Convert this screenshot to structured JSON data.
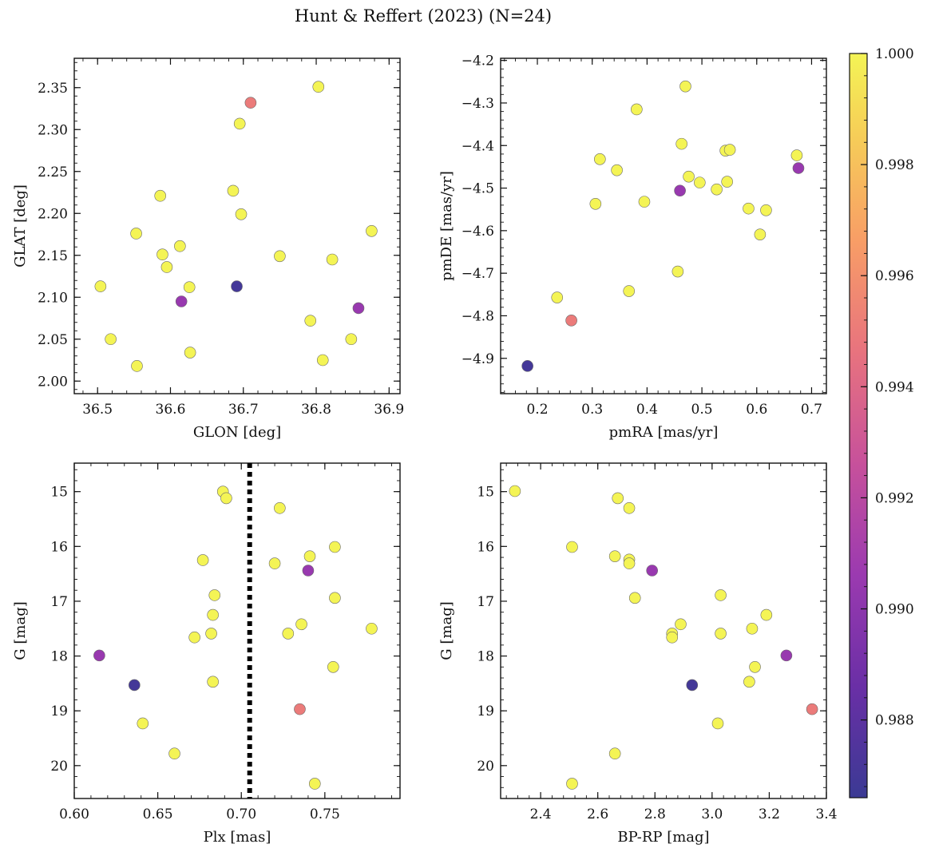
{
  "figure_title": "Hunt & Reffert (2023) (N=24)",
  "colorbar": {
    "min": 0.9866,
    "max": 1.0,
    "ticks": [
      0.988,
      0.99,
      0.992,
      0.994,
      0.996,
      0.998,
      1.0
    ],
    "tick_labels": [
      "0.988",
      "0.990",
      "0.992",
      "0.994",
      "0.996",
      "0.998",
      "1.000"
    ],
    "colormap": "plasma"
  },
  "chart_data": [
    {
      "type": "scatter",
      "title": "",
      "xlabel": "GLON [deg]",
      "ylabel": "GLAT [deg]",
      "xlim": [
        36.468,
        36.915
      ],
      "ylim": [
        1.985,
        2.385
      ],
      "yinvert": false,
      "xticks": [
        36.5,
        36.6,
        36.7,
        36.8,
        36.9
      ],
      "xtick_labels": [
        "36.5",
        "36.6",
        "36.7",
        "36.8",
        "36.9"
      ],
      "yticks": [
        2.0,
        2.05,
        2.1,
        2.15,
        2.2,
        2.25,
        2.3,
        2.35
      ],
      "ytick_labels": [
        "2.00",
        "2.05",
        "2.10",
        "2.15",
        "2.20",
        "2.25",
        "2.30",
        "2.35"
      ],
      "points": [
        {
          "x": 36.504,
          "y": 2.113,
          "c": 1.0
        },
        {
          "x": 36.518,
          "y": 2.05,
          "c": 1.0
        },
        {
          "x": 36.553,
          "y": 2.176,
          "c": 1.0
        },
        {
          "x": 36.554,
          "y": 2.018,
          "c": 1.0
        },
        {
          "x": 36.586,
          "y": 2.221,
          "c": 1.0
        },
        {
          "x": 36.589,
          "y": 2.151,
          "c": 1.0
        },
        {
          "x": 36.595,
          "y": 2.136,
          "c": 1.0
        },
        {
          "x": 36.613,
          "y": 2.161,
          "c": 1.0
        },
        {
          "x": 36.615,
          "y": 2.095,
          "c": 0.9905
        },
        {
          "x": 36.626,
          "y": 2.112,
          "c": 1.0
        },
        {
          "x": 36.627,
          "y": 2.034,
          "c": 1.0
        },
        {
          "x": 36.686,
          "y": 2.227,
          "c": 1.0
        },
        {
          "x": 36.691,
          "y": 2.113,
          "c": 0.987
        },
        {
          "x": 36.695,
          "y": 2.307,
          "c": 1.0
        },
        {
          "x": 36.697,
          "y": 2.199,
          "c": 1.0
        },
        {
          "x": 36.71,
          "y": 2.332,
          "c": 0.995
        },
        {
          "x": 36.75,
          "y": 2.149,
          "c": 1.0
        },
        {
          "x": 36.792,
          "y": 2.072,
          "c": 1.0
        },
        {
          "x": 36.803,
          "y": 2.351,
          "c": 1.0
        },
        {
          "x": 36.809,
          "y": 2.025,
          "c": 1.0
        },
        {
          "x": 36.822,
          "y": 2.145,
          "c": 1.0
        },
        {
          "x": 36.848,
          "y": 2.05,
          "c": 1.0
        },
        {
          "x": 36.858,
          "y": 2.087,
          "c": 0.9905
        },
        {
          "x": 36.876,
          "y": 2.179,
          "c": 1.0
        }
      ]
    },
    {
      "type": "scatter",
      "title": "",
      "xlabel": "pmRA [mas/yr]",
      "ylabel": "pmDE [mas/yr]",
      "xlim": [
        0.133,
        0.727
      ],
      "ylim": [
        -4.983,
        -4.195
      ],
      "yinvert": false,
      "xticks": [
        0.2,
        0.3,
        0.4,
        0.5,
        0.6,
        0.7
      ],
      "xtick_labels": [
        "0.2",
        "0.3",
        "0.4",
        "0.5",
        "0.6",
        "0.7"
      ],
      "yticks": [
        -4.9,
        -4.8,
        -4.7,
        -4.6,
        -4.5,
        -4.4,
        -4.3,
        -4.2
      ],
      "ytick_labels": [
        "−4.9",
        "−4.8",
        "−4.7",
        "−4.6",
        "−4.5",
        "−4.4",
        "−4.3",
        "−4.2"
      ],
      "points": [
        {
          "x": 0.182,
          "y": -4.918,
          "c": 0.987
        },
        {
          "x": 0.236,
          "y": -4.757,
          "c": 1.0
        },
        {
          "x": 0.262,
          "y": -4.811,
          "c": 0.995
        },
        {
          "x": 0.306,
          "y": -4.537,
          "c": 1.0
        },
        {
          "x": 0.314,
          "y": -4.432,
          "c": 1.0
        },
        {
          "x": 0.345,
          "y": -4.458,
          "c": 1.0
        },
        {
          "x": 0.367,
          "y": -4.742,
          "c": 1.0
        },
        {
          "x": 0.381,
          "y": -4.315,
          "c": 1.0
        },
        {
          "x": 0.395,
          "y": -4.532,
          "c": 1.0
        },
        {
          "x": 0.456,
          "y": -4.696,
          "c": 1.0
        },
        {
          "x": 0.46,
          "y": -4.506,
          "c": 0.9905
        },
        {
          "x": 0.463,
          "y": -4.396,
          "c": 1.0
        },
        {
          "x": 0.47,
          "y": -4.261,
          "c": 1.0
        },
        {
          "x": 0.476,
          "y": -4.473,
          "c": 1.0
        },
        {
          "x": 0.496,
          "y": -4.487,
          "c": 1.0
        },
        {
          "x": 0.527,
          "y": -4.503,
          "c": 1.0
        },
        {
          "x": 0.543,
          "y": -4.412,
          "c": 1.0
        },
        {
          "x": 0.546,
          "y": -4.485,
          "c": 1.0
        },
        {
          "x": 0.551,
          "y": -4.41,
          "c": 1.0
        },
        {
          "x": 0.585,
          "y": -4.548,
          "c": 1.0
        },
        {
          "x": 0.606,
          "y": -4.609,
          "c": 1.0
        },
        {
          "x": 0.617,
          "y": -4.552,
          "c": 1.0
        },
        {
          "x": 0.673,
          "y": -4.423,
          "c": 1.0
        },
        {
          "x": 0.676,
          "y": -4.453,
          "c": 0.9905
        }
      ]
    },
    {
      "type": "scatter",
      "title": "",
      "xlabel": "Plx [mas]",
      "ylabel": "G [mag]",
      "xlim": [
        0.6,
        0.795
      ],
      "ylim": [
        20.6,
        14.48
      ],
      "yinvert": true,
      "vline": {
        "x": 0.705,
        "style": "dotted"
      },
      "xticks": [
        0.6,
        0.65,
        0.7,
        0.75
      ],
      "xtick_labels": [
        "0.60",
        "0.65",
        "0.70",
        "0.75"
      ],
      "yticks": [
        15,
        16,
        17,
        18,
        19,
        20
      ],
      "ytick_labels": [
        "15",
        "16",
        "17",
        "18",
        "19",
        "20"
      ],
      "points": [
        {
          "x": 0.615,
          "y": 17.99,
          "c": 0.9905
        },
        {
          "x": 0.636,
          "y": 18.53,
          "c": 0.987
        },
        {
          "x": 0.641,
          "y": 19.23,
          "c": 1.0
        },
        {
          "x": 0.66,
          "y": 19.78,
          "c": 1.0
        },
        {
          "x": 0.672,
          "y": 17.66,
          "c": 1.0
        },
        {
          "x": 0.677,
          "y": 16.25,
          "c": 1.0
        },
        {
          "x": 0.682,
          "y": 17.59,
          "c": 1.0
        },
        {
          "x": 0.683,
          "y": 17.25,
          "c": 1.0
        },
        {
          "x": 0.683,
          "y": 18.47,
          "c": 1.0
        },
        {
          "x": 0.684,
          "y": 16.89,
          "c": 1.0
        },
        {
          "x": 0.689,
          "y": 15.0,
          "c": 1.0
        },
        {
          "x": 0.691,
          "y": 15.12,
          "c": 1.0
        },
        {
          "x": 0.72,
          "y": 16.31,
          "c": 1.0
        },
        {
          "x": 0.723,
          "y": 15.3,
          "c": 1.0
        },
        {
          "x": 0.728,
          "y": 17.59,
          "c": 1.0
        },
        {
          "x": 0.735,
          "y": 18.97,
          "c": 0.995
        },
        {
          "x": 0.736,
          "y": 17.42,
          "c": 1.0
        },
        {
          "x": 0.74,
          "y": 16.44,
          "c": 0.9905
        },
        {
          "x": 0.741,
          "y": 16.18,
          "c": 1.0
        },
        {
          "x": 0.744,
          "y": 20.33,
          "c": 1.0
        },
        {
          "x": 0.755,
          "y": 18.2,
          "c": 1.0
        },
        {
          "x": 0.756,
          "y": 16.01,
          "c": 1.0
        },
        {
          "x": 0.756,
          "y": 16.94,
          "c": 1.0
        },
        {
          "x": 0.778,
          "y": 17.5,
          "c": 1.0
        }
      ]
    },
    {
      "type": "scatter",
      "title": "",
      "xlabel": "BP-RP [mag]",
      "ylabel": "G [mag]",
      "xlim": [
        2.26,
        3.4
      ],
      "ylim": [
        20.6,
        14.48
      ],
      "yinvert": true,
      "xticks": [
        2.4,
        2.6,
        2.8,
        3.0,
        3.2,
        3.4
      ],
      "xtick_labels": [
        "2.4",
        "2.6",
        "2.8",
        "3.0",
        "3.2",
        "3.4"
      ],
      "yticks": [
        15,
        16,
        17,
        18,
        19,
        20
      ],
      "ytick_labels": [
        "15",
        "16",
        "17",
        "18",
        "19",
        "20"
      ],
      "points": [
        {
          "x": 2.31,
          "y": 14.99,
          "c": 1.0
        },
        {
          "x": 2.51,
          "y": 16.01,
          "c": 1.0
        },
        {
          "x": 2.51,
          "y": 20.33,
          "c": 1.0
        },
        {
          "x": 2.66,
          "y": 16.18,
          "c": 1.0
        },
        {
          "x": 2.66,
          "y": 19.78,
          "c": 1.0
        },
        {
          "x": 2.67,
          "y": 15.12,
          "c": 1.0
        },
        {
          "x": 2.71,
          "y": 15.3,
          "c": 1.0
        },
        {
          "x": 2.71,
          "y": 16.24,
          "c": 1.0
        },
        {
          "x": 2.71,
          "y": 16.31,
          "c": 1.0
        },
        {
          "x": 2.73,
          "y": 16.94,
          "c": 1.0
        },
        {
          "x": 2.79,
          "y": 16.44,
          "c": 0.9905
        },
        {
          "x": 2.86,
          "y": 17.59,
          "c": 1.0
        },
        {
          "x": 2.86,
          "y": 17.66,
          "c": 1.0
        },
        {
          "x": 2.89,
          "y": 17.42,
          "c": 1.0
        },
        {
          "x": 2.93,
          "y": 18.53,
          "c": 0.987
        },
        {
          "x": 3.02,
          "y": 19.23,
          "c": 1.0
        },
        {
          "x": 3.03,
          "y": 16.89,
          "c": 1.0
        },
        {
          "x": 3.03,
          "y": 17.59,
          "c": 1.0
        },
        {
          "x": 3.13,
          "y": 18.47,
          "c": 1.0
        },
        {
          "x": 3.14,
          "y": 17.5,
          "c": 1.0
        },
        {
          "x": 3.15,
          "y": 18.2,
          "c": 1.0
        },
        {
          "x": 3.19,
          "y": 17.25,
          "c": 1.0
        },
        {
          "x": 3.26,
          "y": 17.99,
          "c": 0.9905
        },
        {
          "x": 3.35,
          "y": 18.97,
          "c": 0.995
        }
      ]
    }
  ]
}
